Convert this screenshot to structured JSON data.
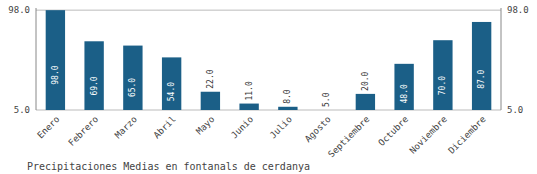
{
  "chart_data": {
    "type": "bar",
    "title": "Precipitaciones Medias en fontanals de cerdanya",
    "categories": [
      "Enero",
      "Febrero",
      "Marzo",
      "Abril",
      "Mayo",
      "Junio",
      "Julio",
      "Agosto",
      "Septiembre",
      "Octubre",
      "Noviembre",
      "Diciembre"
    ],
    "values": [
      98,
      69,
      65,
      54,
      22,
      11,
      8,
      5,
      20,
      48,
      70,
      87
    ],
    "value_labels": [
      "98.0",
      "69.0",
      "65.0",
      "54.0",
      "22.0",
      "11.0",
      "8.0",
      "5.0",
      "20.0",
      "48.0",
      "70.0",
      "87.0"
    ],
    "data_labels": true,
    "color": "#1b5f87",
    "ylim": [
      5.0,
      100.0
    ],
    "yticks": [
      {
        "value": 5.0,
        "label": "5.0"
      },
      {
        "value": 98.0,
        "label": "98.0"
      }
    ],
    "y2lim": [
      5.0,
      100.0
    ],
    "y2ticks": [
      {
        "value": 5.0,
        "label": "5.0"
      },
      {
        "value": 98.0,
        "label": "98.0"
      }
    ],
    "grid": true
  }
}
